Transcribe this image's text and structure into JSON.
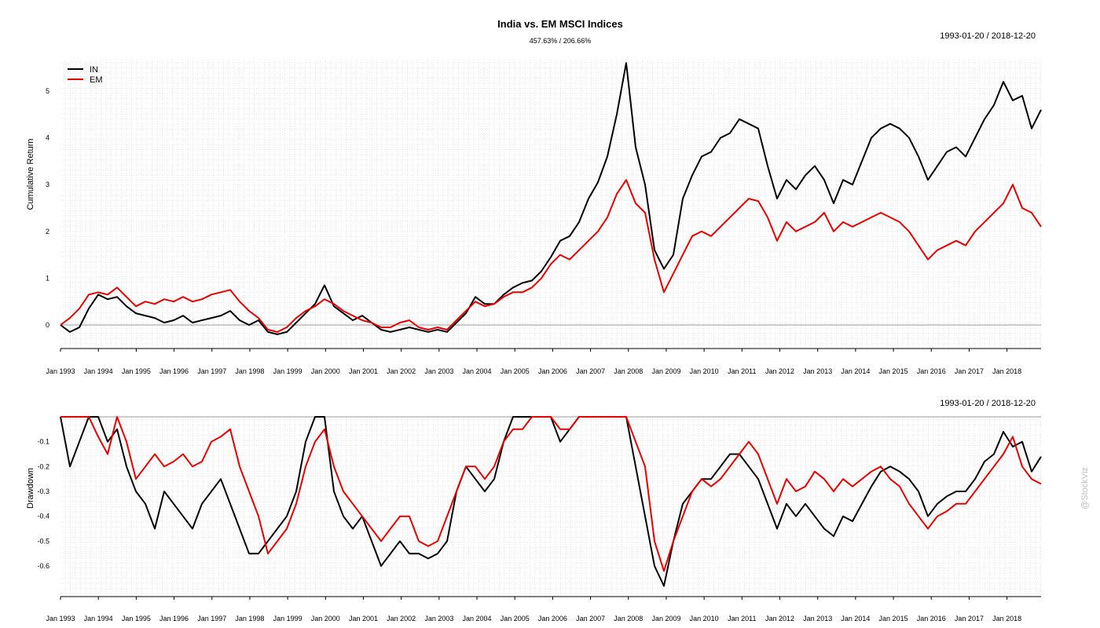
{
  "chart_data": [
    {
      "type": "line",
      "title": "India vs. EM MSCI Indices",
      "subtitle": "457.63% / 206.66%",
      "date_range_label": "1993-01-20 / 2018-12-20",
      "ylabel": "Cumulative Return",
      "xlabel": "",
      "ylim": [
        -0.3,
        5.75
      ],
      "yticks": [
        "0",
        "1",
        "2",
        "3",
        "4",
        "5"
      ],
      "x_tick_labels": [
        "Jan 1993",
        "Jan 1994",
        "Jan 1995",
        "Jan 1996",
        "Jan 1997",
        "Jan 1998",
        "Jan 1999",
        "Jan 2000",
        "Jan 2001",
        "Jan 2002",
        "Jan 2003",
        "Jan 2004",
        "Jan 2005",
        "Jan 2006",
        "Jan 2007",
        "Jan 2008",
        "Jan 2009",
        "Jan 2010",
        "Jan 2011",
        "Jan 2012",
        "Jan 2013",
        "Jan 2014",
        "Jan 2015",
        "Jan 2016",
        "Jan 2017",
        "Jan 2018"
      ],
      "grid": true,
      "legend_position": "top-left",
      "x": [
        "1993-01",
        "1993-04",
        "1993-07",
        "1993-10",
        "1994-01",
        "1994-04",
        "1994-07",
        "1994-10",
        "1995-01",
        "1995-04",
        "1995-07",
        "1995-10",
        "1996-01",
        "1996-04",
        "1996-07",
        "1996-10",
        "1997-01",
        "1997-04",
        "1997-07",
        "1997-10",
        "1998-01",
        "1998-04",
        "1998-07",
        "1998-10",
        "1999-01",
        "1999-04",
        "1999-07",
        "1999-10",
        "2000-01",
        "2000-04",
        "2000-07",
        "2000-10",
        "2001-01",
        "2001-04",
        "2001-07",
        "2001-10",
        "2002-01",
        "2002-04",
        "2002-07",
        "2002-10",
        "2003-01",
        "2003-04",
        "2003-07",
        "2003-10",
        "2004-01",
        "2004-04",
        "2004-07",
        "2004-10",
        "2005-01",
        "2005-04",
        "2005-07",
        "2005-10",
        "2006-01",
        "2006-04",
        "2006-07",
        "2006-10",
        "2007-01",
        "2007-04",
        "2007-07",
        "2007-10",
        "2008-01",
        "2008-04",
        "2008-07",
        "2008-10",
        "2009-01",
        "2009-04",
        "2009-07",
        "2009-10",
        "2010-01",
        "2010-04",
        "2010-07",
        "2010-10",
        "2011-01",
        "2011-04",
        "2011-07",
        "2011-10",
        "2012-01",
        "2012-04",
        "2012-07",
        "2012-10",
        "2013-01",
        "2013-04",
        "2013-07",
        "2013-10",
        "2014-01",
        "2014-04",
        "2014-07",
        "2014-10",
        "2015-01",
        "2015-04",
        "2015-07",
        "2015-10",
        "2016-01",
        "2016-04",
        "2016-07",
        "2016-10",
        "2017-01",
        "2017-04",
        "2017-07",
        "2017-10",
        "2018-01",
        "2018-04",
        "2018-07",
        "2018-10",
        "2018-12"
      ],
      "series": [
        {
          "name": "IN",
          "color": "#000000",
          "values": [
            0.0,
            -0.15,
            -0.05,
            0.35,
            0.65,
            0.55,
            0.6,
            0.4,
            0.25,
            0.2,
            0.15,
            0.05,
            0.1,
            0.2,
            0.05,
            0.1,
            0.15,
            0.2,
            0.3,
            0.1,
            0.0,
            0.1,
            -0.15,
            -0.2,
            -0.15,
            0.05,
            0.25,
            0.45,
            0.85,
            0.4,
            0.25,
            0.1,
            0.2,
            0.05,
            -0.1,
            -0.15,
            -0.1,
            -0.05,
            -0.1,
            -0.15,
            -0.1,
            -0.15,
            0.05,
            0.25,
            0.6,
            0.45,
            0.45,
            0.65,
            0.8,
            0.9,
            0.95,
            1.15,
            1.45,
            1.8,
            1.9,
            2.2,
            2.7,
            3.05,
            3.6,
            4.5,
            5.6,
            3.8,
            3.0,
            1.6,
            1.2,
            1.5,
            2.7,
            3.2,
            3.6,
            3.7,
            4.0,
            4.1,
            4.4,
            4.3,
            4.2,
            3.4,
            2.7,
            3.1,
            2.9,
            3.2,
            3.4,
            3.1,
            2.6,
            3.1,
            3.0,
            3.5,
            4.0,
            4.2,
            4.3,
            4.2,
            4.0,
            3.6,
            3.1,
            3.4,
            3.7,
            3.8,
            3.6,
            4.0,
            4.4,
            4.7,
            5.2,
            4.8,
            4.9,
            4.2,
            4.6
          ]
        },
        {
          "name": "EM",
          "color": "#e50000",
          "values": [
            0.0,
            0.15,
            0.35,
            0.65,
            0.7,
            0.65,
            0.8,
            0.6,
            0.4,
            0.5,
            0.45,
            0.55,
            0.5,
            0.6,
            0.5,
            0.55,
            0.65,
            0.7,
            0.75,
            0.5,
            0.3,
            0.15,
            -0.1,
            -0.15,
            -0.05,
            0.15,
            0.3,
            0.4,
            0.55,
            0.45,
            0.3,
            0.2,
            0.1,
            0.05,
            -0.05,
            -0.05,
            0.05,
            0.1,
            -0.05,
            -0.1,
            -0.05,
            -0.1,
            0.1,
            0.3,
            0.5,
            0.4,
            0.45,
            0.6,
            0.7,
            0.7,
            0.8,
            1.0,
            1.3,
            1.5,
            1.4,
            1.6,
            1.8,
            2.0,
            2.3,
            2.8,
            3.1,
            2.6,
            2.4,
            1.4,
            0.7,
            1.1,
            1.5,
            1.9,
            2.0,
            1.9,
            2.1,
            2.3,
            2.5,
            2.7,
            2.65,
            2.3,
            1.8,
            2.2,
            2.0,
            2.1,
            2.2,
            2.4,
            2.0,
            2.2,
            2.1,
            2.2,
            2.3,
            2.4,
            2.3,
            2.2,
            2.0,
            1.7,
            1.4,
            1.6,
            1.7,
            1.8,
            1.7,
            2.0,
            2.2,
            2.4,
            2.6,
            3.0,
            2.5,
            2.4,
            2.1
          ]
        }
      ]
    },
    {
      "type": "line",
      "title": "",
      "date_range_label": "1993-01-20 / 2018-12-20",
      "ylabel": "Drawdown",
      "ylim": [
        -0.7,
        0.0
      ],
      "yticks": [
        "-0.1",
        "-0.2",
        "-0.3",
        "-0.4",
        "-0.5",
        "-0.6"
      ],
      "x_tick_labels": [
        "Jan 1993",
        "Jan 1994",
        "Jan 1995",
        "Jan 1996",
        "Jan 1997",
        "Jan 1998",
        "Jan 1999",
        "Jan 2000",
        "Jan 2001",
        "Jan 2002",
        "Jan 2003",
        "Jan 2004",
        "Jan 2005",
        "Jan 2006",
        "Jan 2007",
        "Jan 2008",
        "Jan 2009",
        "Jan 2010",
        "Jan 2011",
        "Jan 2012",
        "Jan 2013",
        "Jan 2014",
        "Jan 2015",
        "Jan 2016",
        "Jan 2017",
        "Jan 2018"
      ],
      "grid": true,
      "series": [
        {
          "name": "IN",
          "color": "#000000",
          "values": [
            0.0,
            -0.2,
            -0.1,
            0.0,
            0.0,
            -0.1,
            -0.05,
            -0.2,
            -0.3,
            -0.35,
            -0.45,
            -0.3,
            -0.35,
            -0.4,
            -0.45,
            -0.35,
            -0.3,
            -0.25,
            -0.35,
            -0.45,
            -0.55,
            -0.55,
            -0.5,
            -0.45,
            -0.4,
            -0.3,
            -0.1,
            0.0,
            0.0,
            -0.3,
            -0.4,
            -0.45,
            -0.4,
            -0.5,
            -0.6,
            -0.55,
            -0.5,
            -0.55,
            -0.55,
            -0.57,
            -0.55,
            -0.5,
            -0.3,
            -0.2,
            -0.25,
            -0.3,
            -0.25,
            -0.1,
            0.0,
            0.0,
            0.0,
            0.0,
            0.0,
            -0.1,
            -0.05,
            0.0,
            0.0,
            0.0,
            0.0,
            0.0,
            0.0,
            -0.2,
            -0.4,
            -0.6,
            -0.68,
            -0.5,
            -0.35,
            -0.3,
            -0.25,
            -0.25,
            -0.2,
            -0.15,
            -0.15,
            -0.2,
            -0.25,
            -0.35,
            -0.45,
            -0.35,
            -0.4,
            -0.35,
            -0.4,
            -0.45,
            -0.48,
            -0.4,
            -0.42,
            -0.35,
            -0.28,
            -0.22,
            -0.2,
            -0.22,
            -0.25,
            -0.3,
            -0.4,
            -0.35,
            -0.32,
            -0.3,
            -0.3,
            -0.25,
            -0.18,
            -0.15,
            -0.06,
            -0.12,
            -0.1,
            -0.22,
            -0.16
          ]
        },
        {
          "name": "EM",
          "color": "#e50000",
          "values": [
            0.0,
            0.0,
            0.0,
            0.0,
            -0.08,
            -0.15,
            0.0,
            -0.1,
            -0.25,
            -0.2,
            -0.15,
            -0.2,
            -0.18,
            -0.15,
            -0.2,
            -0.18,
            -0.1,
            -0.08,
            -0.05,
            -0.2,
            -0.3,
            -0.4,
            -0.55,
            -0.5,
            -0.45,
            -0.35,
            -0.2,
            -0.1,
            -0.05,
            -0.2,
            -0.3,
            -0.35,
            -0.4,
            -0.45,
            -0.5,
            -0.45,
            -0.4,
            -0.4,
            -0.5,
            -0.52,
            -0.5,
            -0.4,
            -0.3,
            -0.2,
            -0.2,
            -0.25,
            -0.2,
            -0.1,
            -0.05,
            -0.05,
            0.0,
            0.0,
            0.0,
            -0.05,
            -0.05,
            0.0,
            0.0,
            0.0,
            0.0,
            0.0,
            0.0,
            -0.1,
            -0.2,
            -0.5,
            -0.62,
            -0.5,
            -0.4,
            -0.3,
            -0.25,
            -0.28,
            -0.25,
            -0.2,
            -0.15,
            -0.1,
            -0.15,
            -0.25,
            -0.35,
            -0.25,
            -0.3,
            -0.28,
            -0.22,
            -0.25,
            -0.3,
            -0.25,
            -0.28,
            -0.25,
            -0.22,
            -0.2,
            -0.25,
            -0.28,
            -0.35,
            -0.4,
            -0.45,
            -0.4,
            -0.38,
            -0.35,
            -0.35,
            -0.3,
            -0.25,
            -0.2,
            -0.15,
            -0.08,
            -0.2,
            -0.25,
            -0.27
          ]
        }
      ]
    }
  ],
  "watermark": "@StockViz"
}
